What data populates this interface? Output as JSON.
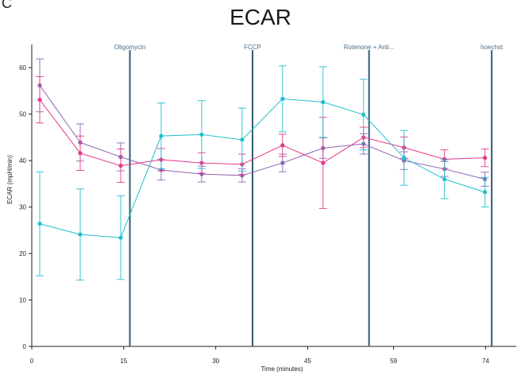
{
  "panel_letter": "C",
  "chart_data": {
    "type": "line",
    "title": "ECAR",
    "xlabel": "Time (minutes)",
    "ylabel": "ECAR (mpH/min)",
    "x_ticks": [
      "0",
      "15",
      "30",
      "45",
      "59",
      "74"
    ],
    "x_tick_values": [
      0,
      15,
      30,
      45,
      59,
      74
    ],
    "y_ticks": [
      0,
      10,
      20,
      30,
      40,
      50,
      60
    ],
    "xlim": [
      0,
      79
    ],
    "ylim": [
      0,
      65
    ],
    "grid": false,
    "legend": "none",
    "events": [
      {
        "label": "Oligomycin",
        "x": 16
      },
      {
        "label": "FCCP",
        "x": 36
      },
      {
        "label": "Rotenone + Anti...",
        "x": 55
      },
      {
        "label": "hoechst",
        "x": 75
      }
    ],
    "x": [
      1.3,
      7.9,
      14.5,
      21.1,
      27.7,
      34.3,
      40.9,
      47.5,
      54.1,
      60.7,
      67.3,
      73.9
    ],
    "series": [
      {
        "color": "#8e63b1",
        "values": [
          56.2,
          43.9,
          40.8,
          38.0,
          37.1,
          36.8,
          39.5,
          42.7,
          43.6,
          40.0,
          38.2,
          36.0
        ],
        "errors": [
          5.7,
          4.0,
          3.0,
          2.2,
          1.7,
          1.4,
          1.9,
          2.2,
          2.2,
          1.9,
          1.6,
          1.5
        ]
      },
      {
        "color": "#e4388a",
        "values": [
          53.1,
          41.6,
          38.9,
          40.2,
          39.5,
          39.2,
          43.3,
          39.5,
          45.0,
          42.8,
          40.3,
          40.6
        ],
        "errors": [
          5.0,
          3.7,
          3.6,
          2.4,
          2.2,
          2.2,
          2.4,
          9.8,
          2.2,
          2.3,
          2.0,
          1.9
        ]
      },
      {
        "color": "#1fbfcc",
        "values": [
          26.4,
          24.1,
          23.4,
          45.3,
          45.6,
          44.5,
          53.3,
          52.6,
          49.9,
          40.6,
          36.0,
          33.2
        ],
        "errors": [
          11.2,
          9.8,
          9.0,
          7.1,
          7.3,
          6.8,
          7.1,
          7.6,
          7.6,
          5.9,
          4.2,
          3.2
        ]
      }
    ]
  }
}
